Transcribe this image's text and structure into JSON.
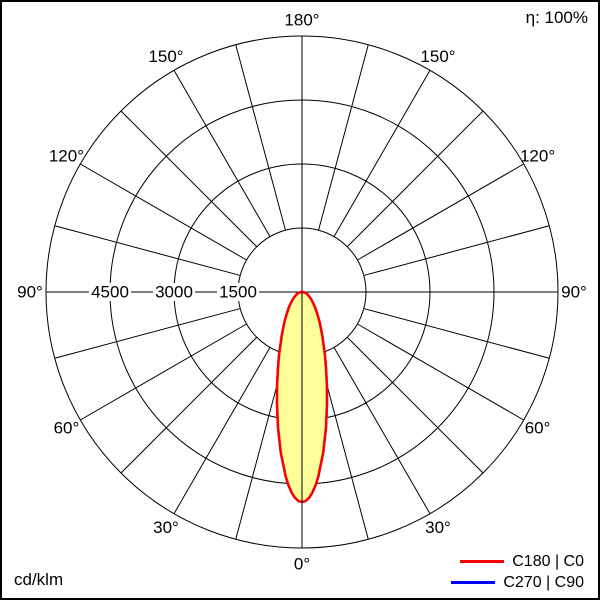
{
  "frame": {
    "background": "#ffffff",
    "border_color": "#000000"
  },
  "header": {
    "efficiency_label": "η: 100%"
  },
  "footer": {
    "unit_label": "cd/klm"
  },
  "legend": {
    "items": [
      {
        "label": "C180 | C0",
        "color": "#ff0000"
      },
      {
        "label": "C270 | C90",
        "color": "#0000ff"
      }
    ]
  },
  "chart_data": {
    "type": "line",
    "coordinate_system": "polar",
    "angle_unit": "degrees",
    "angle_zero_position": "bottom",
    "angle_tick_step_deg": 15,
    "angle_labels_deg": [
      0,
      30,
      60,
      90,
      120,
      150,
      180
    ],
    "ring_values": [
      1500,
      3000,
      4500,
      6000
    ],
    "labeled_rings": [
      1500,
      3000,
      4500
    ],
    "radial_unit": "cd/klm",
    "grid_color": "#000000",
    "series": [
      {
        "name": "C180 | C0",
        "color": "#ff0000",
        "fill": "#ffff99",
        "symmetric": true,
        "gamma_deg": [
          0,
          1,
          2,
          3,
          4,
          5,
          7.5,
          10,
          12.5,
          15,
          17.5,
          20,
          25,
          30,
          35,
          40,
          45,
          50,
          55,
          60,
          65,
          70,
          75,
          80,
          85,
          90
        ],
        "values_cd_per_klm": [
          4920,
          4900,
          4820,
          4700,
          4540,
          4350,
          3800,
          3230,
          2700,
          2250,
          1870,
          1570,
          1120,
          830,
          620,
          480,
          370,
          290,
          230,
          180,
          140,
          110,
          80,
          50,
          25,
          0
        ]
      },
      {
        "name": "C270 | C90",
        "color": "#0000ff",
        "fill": "none",
        "symmetric": true,
        "coincident_with": "C180 | C0",
        "gamma_deg": [
          0,
          1,
          2,
          3,
          4,
          5,
          7.5,
          10,
          12.5,
          15,
          17.5,
          20,
          25,
          30,
          35,
          40,
          45,
          50,
          55,
          60,
          65,
          70,
          75,
          80,
          85,
          90
        ],
        "values_cd_per_klm": [
          4920,
          4900,
          4820,
          4700,
          4540,
          4350,
          3800,
          3230,
          2700,
          2250,
          1870,
          1570,
          1120,
          830,
          620,
          480,
          370,
          290,
          230,
          180,
          140,
          110,
          80,
          50,
          25,
          0
        ]
      }
    ]
  }
}
